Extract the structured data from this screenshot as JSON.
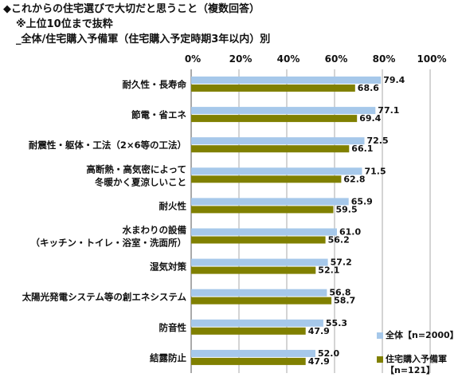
{
  "title_lines": [
    "◆これからの住宅選びで大切だと思うこと（複数回答）",
    "※上位10位まで抜粋",
    "_全体/住宅購入予備軍（住宅購入予定時期3年以内）別"
  ],
  "colors": {
    "series_all": "#a6c8ea",
    "series_buyers": "#808000",
    "grid": "#aaaaaa",
    "axis": "#555555"
  },
  "legend": {
    "all": "全体【n=2000】",
    "buyers_line1": "住宅購入予備軍",
    "buyers_line2": "【n=121】"
  },
  "chart_data": {
    "type": "bar",
    "orientation": "horizontal",
    "categories": [
      [
        "耐久性・長寿命"
      ],
      [
        "節電・省エネ"
      ],
      [
        "耐震性・躯体・工法（2×6等の工法）"
      ],
      [
        "高断熱・高気密によって",
        "冬暖かく夏涼しいこと"
      ],
      [
        "耐火性"
      ],
      [
        "水まわりの設備",
        "（キッチン・トイレ・浴室・洗面所）"
      ],
      [
        "湿気対策"
      ],
      [
        "太陽光発電システム等の創エネシステム"
      ],
      [
        "防音性"
      ],
      [
        "結露防止"
      ]
    ],
    "series": [
      {
        "name": "全体【n=2000】",
        "values": [
          79.4,
          77.1,
          72.5,
          71.5,
          65.9,
          61.0,
          57.2,
          56.8,
          55.3,
          52.0
        ]
      },
      {
        "name": "住宅購入予備軍【n=121】",
        "values": [
          68.6,
          69.4,
          66.1,
          62.8,
          59.5,
          56.2,
          52.1,
          58.7,
          47.9,
          47.9
        ]
      }
    ],
    "xlim": [
      0,
      100
    ],
    "ticks": [
      "0%",
      "20%",
      "40%",
      "60%",
      "80%",
      "100%"
    ],
    "grid": true,
    "legend_position": "bottom-right"
  }
}
